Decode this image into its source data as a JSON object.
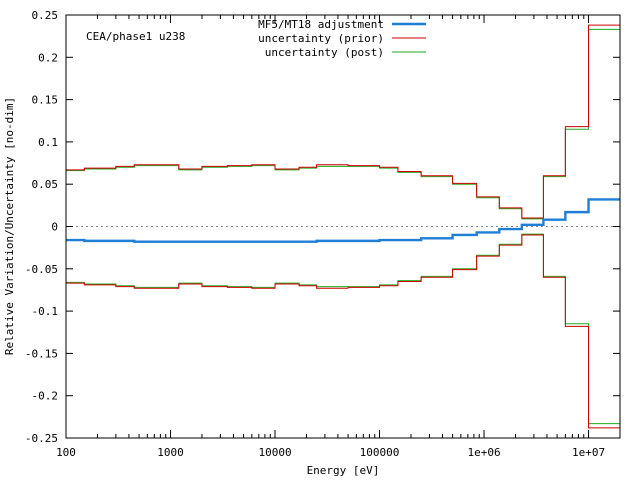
{
  "chart_data": {
    "type": "line",
    "title": "",
    "annotation": "CEA/phase1 u238",
    "xlabel": "Energy [eV]",
    "ylabel": "Relative Variation/Uncertainty [no-dim]",
    "x_scale": "log",
    "xlim": [
      100,
      20000000
    ],
    "ylim": [
      -0.25,
      0.25
    ],
    "x_ticks": [
      {
        "value": 100,
        "label": "100"
      },
      {
        "value": 1000,
        "label": "1000"
      },
      {
        "value": 10000,
        "label": "10000"
      },
      {
        "value": 100000,
        "label": "100000"
      },
      {
        "value": 1000000,
        "label": "1e+06"
      },
      {
        "value": 10000000,
        "label": "1e+07"
      }
    ],
    "y_ticks": [
      {
        "value": 0.25,
        "label": "0.25"
      },
      {
        "value": 0.2,
        "label": "0.2"
      },
      {
        "value": 0.15,
        "label": "0.15"
      },
      {
        "value": 0.1,
        "label": "0.1"
      },
      {
        "value": 0.05,
        "label": "0.05"
      },
      {
        "value": 0,
        "label": "0"
      },
      {
        "value": -0.05,
        "label": "-0.05"
      },
      {
        "value": -0.1,
        "label": "-0.1"
      },
      {
        "value": -0.15,
        "label": "-0.15"
      },
      {
        "value": -0.2,
        "label": "-0.2"
      },
      {
        "value": -0.25,
        "label": "-0.25"
      }
    ],
    "grid": false,
    "zero_line": true,
    "legend_position": "top-center",
    "bin_edges": [
      100,
      150,
      300,
      450,
      1200,
      2000,
      3500,
      6000,
      10000,
      17000,
      25000,
      50000,
      100000,
      150000,
      250000,
      500000,
      850000,
      1400000,
      2300000,
      3700000,
      6000000,
      10000000,
      20000000
    ],
    "series": [
      {
        "name": "MF5/MT18 adjustment",
        "color": "#1f7fd6",
        "symmetric": false,
        "values": [
          -0.016,
          -0.017,
          -0.017,
          -0.018,
          -0.018,
          -0.018,
          -0.018,
          -0.018,
          -0.018,
          -0.018,
          -0.017,
          -0.017,
          -0.016,
          -0.016,
          -0.014,
          -0.01,
          -0.007,
          -0.003,
          0.002,
          0.008,
          0.017,
          0.032,
          0.052
        ]
      },
      {
        "name": "uncertainty (prior)",
        "color": "#cc0000",
        "symmetric": true,
        "values": [
          0.067,
          0.069,
          0.071,
          0.073,
          0.068,
          0.071,
          0.072,
          0.073,
          0.068,
          0.07,
          0.073,
          0.072,
          0.07,
          0.065,
          0.06,
          0.051,
          0.035,
          0.022,
          0.01,
          0.06,
          0.118,
          0.238
        ]
      },
      {
        "name": "uncertainty (post)",
        "color": "#22aa22",
        "symmetric": true,
        "values": [
          0.066,
          0.068,
          0.07,
          0.072,
          0.067,
          0.07,
          0.071,
          0.072,
          0.067,
          0.069,
          0.071,
          0.071,
          0.069,
          0.064,
          0.059,
          0.05,
          0.034,
          0.021,
          0.009,
          0.059,
          0.115,
          0.233
        ]
      }
    ]
  }
}
